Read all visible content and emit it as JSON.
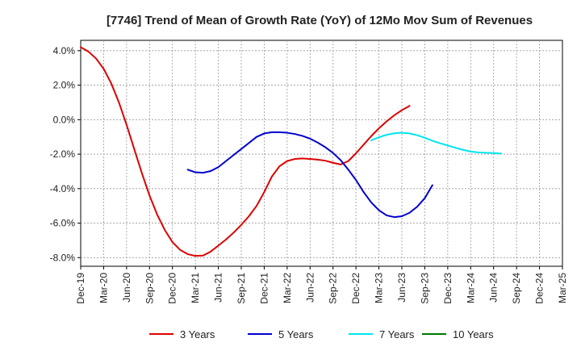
{
  "chart_data": {
    "type": "line",
    "title": "[7746]  Trend of Mean of Growth Rate (YoY) of 12Mo Mov Sum of Revenues",
    "xlabel": "",
    "ylabel": "",
    "ylim": [
      -8.5,
      4.6
    ],
    "y_ticks": [
      4.0,
      2.0,
      0.0,
      -2.0,
      -4.0,
      -6.0,
      -8.0
    ],
    "y_tick_labels": [
      "4.0%",
      "2.0%",
      "0.0%",
      "-2.0%",
      "-4.0%",
      "-6.0%",
      "-8.0%"
    ],
    "x_tick_labels": [
      "Dec-19",
      "Mar-20",
      "Jun-20",
      "Sep-20",
      "Dec-20",
      "Mar-21",
      "Jun-21",
      "Sep-21",
      "Dec-21",
      "Mar-22",
      "Jun-22",
      "Sep-22",
      "Dec-22",
      "Mar-23",
      "Jun-23",
      "Sep-23",
      "Dec-23",
      "Mar-24",
      "Jun-24",
      "Sep-24",
      "Dec-24",
      "Mar-25"
    ],
    "grid": true,
    "legend_position": "bottom",
    "series": [
      {
        "name": "3 Years",
        "color": "#dd0000",
        "start_index": 0,
        "values": [
          4.2,
          3.95,
          3.55,
          2.95,
          2.1,
          1.0,
          -0.3,
          -1.7,
          -3.1,
          -4.4,
          -5.5,
          -6.4,
          -7.1,
          -7.55,
          -7.8,
          -7.9,
          -7.88,
          -7.65,
          -7.3,
          -6.95,
          -6.55,
          -6.1,
          -5.6,
          -5.0,
          -4.2,
          -3.3,
          -2.7,
          -2.4,
          -2.28,
          -2.25,
          -2.28,
          -2.32,
          -2.38,
          -2.5,
          -2.6,
          -2.4,
          -1.95,
          -1.45,
          -0.95,
          -0.5,
          -0.1,
          0.25,
          0.55,
          0.8
        ]
      },
      {
        "name": "5 Years",
        "color": "#0000cc",
        "start_index": 14,
        "values": [
          -2.9,
          -3.05,
          -3.08,
          -2.98,
          -2.75,
          -2.4,
          -2.05,
          -1.7,
          -1.35,
          -1.0,
          -0.8,
          -0.73,
          -0.73,
          -0.76,
          -0.83,
          -0.94,
          -1.1,
          -1.33,
          -1.6,
          -1.93,
          -2.35,
          -2.9,
          -3.5,
          -4.2,
          -4.8,
          -5.25,
          -5.55,
          -5.65,
          -5.6,
          -5.4,
          -5.05,
          -4.55,
          -3.8
        ]
      },
      {
        "name": "7 Years",
        "color": "#00e5ee",
        "start_index": 38,
        "values": [
          -1.2,
          -1.02,
          -0.88,
          -0.79,
          -0.76,
          -0.8,
          -0.9,
          -1.05,
          -1.22,
          -1.37,
          -1.5,
          -1.63,
          -1.75,
          -1.85,
          -1.9,
          -1.92,
          -1.93,
          -1.97
        ]
      },
      {
        "name": "10 Years",
        "color": "#007700",
        "start_index": 0,
        "values": []
      }
    ]
  }
}
